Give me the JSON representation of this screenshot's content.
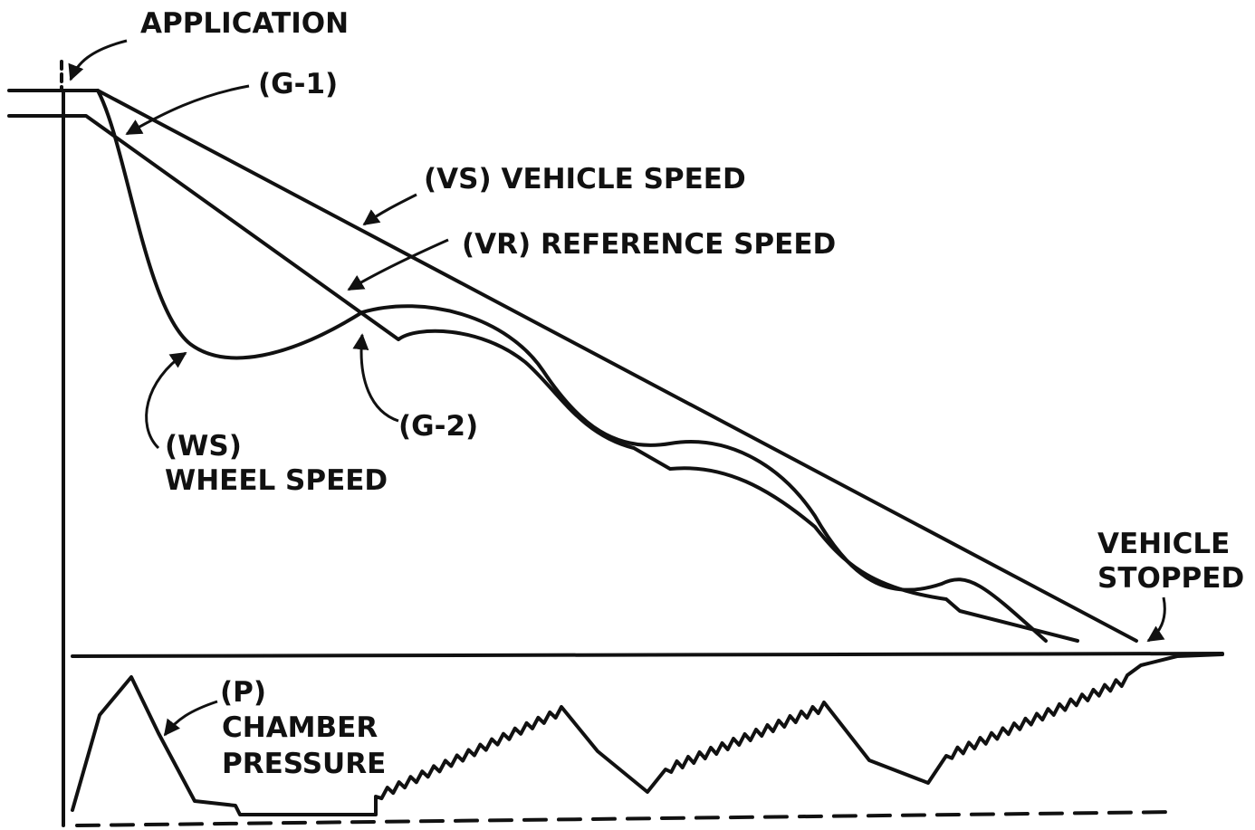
{
  "labels": {
    "application": "APPLICATION",
    "g1": "(G-1)",
    "vehicle_speed": "(VS) VEHICLE SPEED",
    "reference_speed": "(VR) REFERENCE SPEED",
    "ws": "(WS)",
    "wheel_speed": "WHEEL SPEED",
    "g2": "(G-2)",
    "vehicle": "VEHICLE",
    "stopped": "STOPPED",
    "p": "(P)",
    "chamber": "CHAMBER",
    "pressure": "PRESSURE"
  }
}
